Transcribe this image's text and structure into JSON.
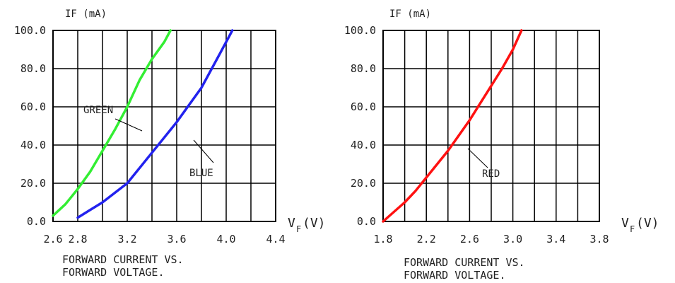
{
  "chart_data": [
    {
      "type": "line",
      "y_axis_title": "IF (mA)",
      "x_axis_title_main": "V",
      "x_axis_title_sub": "F",
      "x_axis_title_suffix": "(V)",
      "x_ticks": [
        2.6,
        2.8,
        3.0,
        3.2,
        3.4,
        3.6,
        3.8,
        4.0,
        4.2,
        4.4
      ],
      "x_tick_labels": [
        "2.6",
        "2.8",
        "3.2",
        "3.6",
        "4.0",
        "4.4"
      ],
      "x_tick_label_values": [
        2.6,
        2.8,
        3.2,
        3.6,
        4.0,
        4.4
      ],
      "y_ticks": [
        0,
        20,
        40,
        60,
        80,
        100
      ],
      "y_tick_labels": [
        "0.0",
        "20.0",
        "40.0",
        "60.0",
        "80.0",
        "100.0"
      ],
      "xlim": [
        2.6,
        4.4
      ],
      "ylim": [
        0,
        100
      ],
      "grid": true,
      "series": [
        {
          "name": "GREEN",
          "color": "#33ee33",
          "x": [
            2.6,
            2.7,
            2.8,
            2.9,
            3.0,
            3.1,
            3.2,
            3.3,
            3.4,
            3.5,
            3.55
          ],
          "y": [
            3,
            9,
            17,
            26,
            37,
            48,
            60,
            74,
            85,
            94,
            100
          ]
        },
        {
          "name": "BLUE",
          "color": "#2222ee",
          "x": [
            2.8,
            3.0,
            3.2,
            3.4,
            3.6,
            3.8,
            3.95,
            4.05
          ],
          "y": [
            2,
            10,
            20,
            36,
            52,
            70,
            88,
            100
          ]
        }
      ],
      "caption_line1": "FORWARD CURRENT VS.",
      "caption_line2": "FORWARD VOLTAGE."
    },
    {
      "type": "line",
      "y_axis_title": "IF (mA)",
      "x_axis_title_main": "V",
      "x_axis_title_sub": "F",
      "x_axis_title_suffix": "(V)",
      "x_ticks": [
        1.8,
        2.0,
        2.2,
        2.4,
        2.6,
        2.8,
        3.0,
        3.2,
        3.4,
        3.6,
        3.8
      ],
      "x_tick_labels": [
        "1.8",
        "2.2",
        "2.6",
        "3.0",
        "3.4",
        "3.8"
      ],
      "x_tick_label_values": [
        1.8,
        2.2,
        2.6,
        3.0,
        3.4,
        3.8
      ],
      "y_ticks": [
        0,
        20,
        40,
        60,
        80,
        100
      ],
      "y_tick_labels": [
        "0.0",
        "20.0",
        "40.0",
        "60.0",
        "80.0",
        "100.0"
      ],
      "xlim": [
        1.8,
        3.8
      ],
      "ylim": [
        0,
        100
      ],
      "grid": true,
      "series": [
        {
          "name": "RED",
          "color": "#ff1111",
          "x": [
            1.8,
            1.9,
            2.0,
            2.1,
            2.2,
            2.3,
            2.4,
            2.5,
            2.6,
            2.7,
            2.8,
            2.9,
            3.0,
            3.08
          ],
          "y": [
            0,
            5,
            10,
            16,
            23,
            30,
            37,
            45,
            53,
            62,
            71,
            80,
            90,
            100
          ]
        }
      ],
      "caption_line1": "FORWARD CURRENT VS.",
      "caption_line2": "FORWARD VOLTAGE."
    }
  ]
}
